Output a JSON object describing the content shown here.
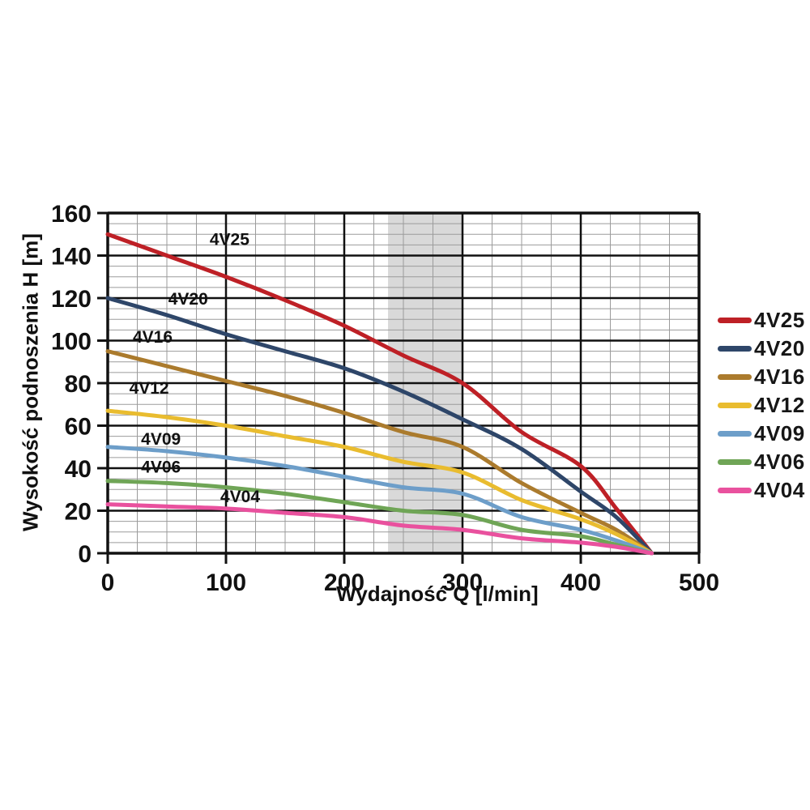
{
  "chart_data": {
    "type": "line",
    "title": "",
    "xlabel": "Wydajność Q [l/min]",
    "ylabel": "Wysokość podnoszenia H [m]",
    "xlim": [
      0,
      500
    ],
    "ylim": [
      0,
      160
    ],
    "x_ticks": [
      0,
      100,
      200,
      300,
      400,
      500
    ],
    "y_ticks": [
      0,
      20,
      40,
      60,
      80,
      100,
      120,
      140,
      160
    ],
    "x_minor_step": 25,
    "y_minor_step": 5,
    "grid": true,
    "legend_position": "right",
    "axis_color": "#111111",
    "minor_grid_color": "#9b9b9b",
    "highlight_band": {
      "x0": 237,
      "x1": 300,
      "color": "#d9d9d9"
    },
    "x": [
      0,
      50,
      100,
      150,
      200,
      250,
      300,
      350,
      400,
      430,
      460
    ],
    "series": [
      {
        "name": "4V25",
        "color": "#be2026",
        "values": [
          150,
          140,
          130,
          119,
          107,
          93,
          80,
          57,
          41,
          21,
          0
        ],
        "label_at": [
          103,
          145
        ]
      },
      {
        "name": "4V20",
        "color": "#2e4669",
        "values": [
          120,
          112,
          103,
          95,
          87,
          76,
          63,
          49,
          29,
          17,
          0
        ],
        "label_at": [
          68,
          117
        ]
      },
      {
        "name": "4V16",
        "color": "#ab7b2d",
        "values": [
          95,
          88,
          81,
          74,
          66,
          57,
          50,
          33,
          19,
          11,
          0
        ],
        "label_at": [
          38,
          99
        ]
      },
      {
        "name": "4V12",
        "color": "#e9bc2f",
        "values": [
          67,
          64,
          60,
          55,
          50,
          43,
          38,
          25,
          16,
          9,
          0
        ],
        "label_at": [
          35,
          75
        ]
      },
      {
        "name": "4V09",
        "color": "#6d9ec9",
        "values": [
          50,
          48,
          45,
          41,
          36,
          31,
          28,
          17,
          11,
          6,
          0
        ],
        "label_at": [
          45,
          51
        ]
      },
      {
        "name": "4V06",
        "color": "#6fa556",
        "values": [
          34,
          33,
          31,
          28,
          24,
          20,
          18,
          11,
          8,
          4,
          0
        ],
        "label_at": [
          45,
          38
        ]
      },
      {
        "name": "4V04",
        "color": "#e9519e",
        "values": [
          23,
          22,
          21,
          19,
          17,
          13,
          11,
          7,
          5,
          3,
          0
        ],
        "label_at": [
          112,
          24
        ]
      }
    ]
  }
}
